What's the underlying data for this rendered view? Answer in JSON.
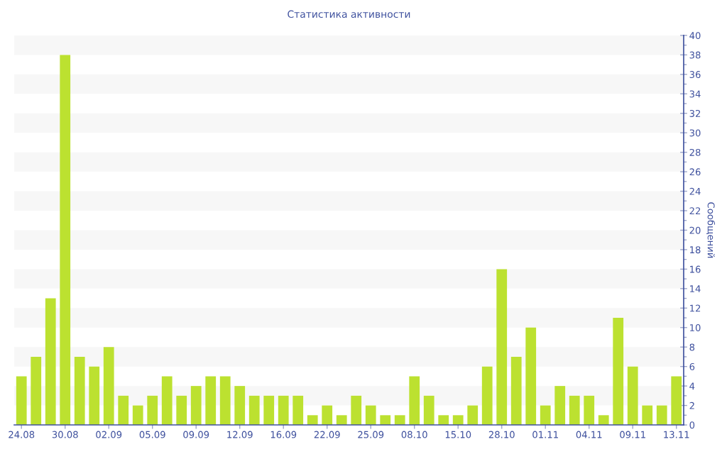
{
  "chart_data": {
    "type": "bar",
    "title": "Статистика активности",
    "ylabel": "Сообщений",
    "categories": [
      "24.08",
      null,
      null,
      "30.08",
      null,
      null,
      "02.09",
      null,
      null,
      "05.09",
      null,
      null,
      "09.09",
      null,
      null,
      "12.09",
      null,
      null,
      "16.09",
      null,
      null,
      "22.09",
      null,
      null,
      "25.09",
      null,
      null,
      "08.10",
      null,
      null,
      "15.10",
      null,
      null,
      "28.10",
      null,
      null,
      "01.11",
      null,
      null,
      "04.11",
      null,
      null,
      "09.11",
      null,
      null,
      "13.11"
    ],
    "values": [
      5,
      7,
      13,
      38,
      7,
      6,
      8,
      3,
      2,
      3,
      5,
      3,
      4,
      5,
      5,
      4,
      3,
      3,
      3,
      3,
      1,
      2,
      1,
      3,
      2,
      1,
      1,
      5,
      3,
      1,
      1,
      2,
      6,
      16,
      7,
      10,
      2,
      4,
      3,
      3,
      1,
      11,
      6,
      2,
      2,
      5
    ],
    "color": "#bce130",
    "ylim": [
      0,
      40
    ],
    "yticks": [
      0,
      {
        "value": 1,
        "label": null
      },
      2,
      {
        "value": 3,
        "label": null
      },
      4,
      {
        "value": 5,
        "label": null
      },
      6,
      {
        "value": 7,
        "label": null
      },
      8,
      {
        "value": 9,
        "label": null
      },
      10,
      {
        "value": 11,
        "label": null
      },
      12,
      {
        "value": 13,
        "label": null
      },
      14,
      {
        "value": 15,
        "label": null
      },
      16,
      {
        "value": 17,
        "label": null
      },
      18,
      {
        "value": 19,
        "label": null
      },
      20,
      {
        "value": 21,
        "label": null
      },
      22,
      {
        "value": 23,
        "label": null
      },
      24,
      {
        "value": 25,
        "label": null
      },
      26,
      {
        "value": 27,
        "label": null
      },
      28,
      {
        "value": 29,
        "label": null
      },
      30,
      {
        "value": 31,
        "label": null
      },
      32,
      {
        "value": 33,
        "label": null
      },
      34,
      {
        "value": 35,
        "label": null
      },
      36,
      {
        "value": 37,
        "label": null
      },
      38,
      {
        "value": 39,
        "label": null
      },
      40
    ],
    "bands": [
      {
        "axis": "y",
        "from": 2,
        "to": 4,
        "color": "#f7f7f7"
      },
      {
        "axis": "y",
        "from": 6,
        "to": 8,
        "color": "#f7f7f7"
      },
      {
        "axis": "y",
        "from": 10,
        "to": 12,
        "color": "#f7f7f7"
      },
      {
        "axis": "y",
        "from": 14,
        "to": 16,
        "color": "#f7f7f7"
      },
      {
        "axis": "y",
        "from": 18,
        "to": 20,
        "color": "#f7f7f7"
      },
      {
        "axis": "y",
        "from": 22,
        "to": 24,
        "color": "#f7f7f7"
      },
      {
        "axis": "y",
        "from": 26,
        "to": 28,
        "color": "#f7f7f7"
      },
      {
        "axis": "y",
        "from": 30,
        "to": 32,
        "color": "#f7f7f7"
      },
      {
        "axis": "y",
        "from": 34,
        "to": 36,
        "color": "#f7f7f7"
      },
      {
        "axis": "y",
        "from": 38,
        "to": 40,
        "color": "#f7f7f7"
      }
    ]
  }
}
